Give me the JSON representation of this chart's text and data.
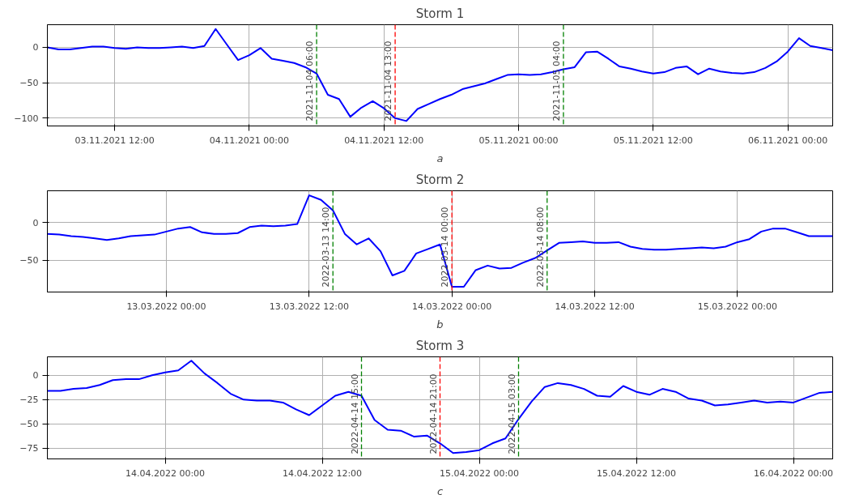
{
  "chart_data": [
    {
      "type": "line",
      "title": "Storm 1",
      "xlabel": "a",
      "grid": true,
      "line_style": "solid",
      "x": [
        "2021-11-03T06:00",
        "2021-11-03T07:00",
        "2021-11-03T08:00",
        "2021-11-03T09:00",
        "2021-11-03T10:00",
        "2021-11-03T11:00",
        "2021-11-03T12:00",
        "2021-11-03T13:00",
        "2021-11-03T14:00",
        "2021-11-03T15:00",
        "2021-11-03T16:00",
        "2021-11-03T17:00",
        "2021-11-03T18:00",
        "2021-11-03T19:00",
        "2021-11-03T20:00",
        "2021-11-03T21:00",
        "2021-11-03T22:00",
        "2021-11-03T23:00",
        "2021-11-04T00:00",
        "2021-11-04T01:00",
        "2021-11-04T02:00",
        "2021-11-04T03:00",
        "2021-11-04T04:00",
        "2021-11-04T05:00",
        "2021-11-04T06:00",
        "2021-11-04T07:00",
        "2021-11-04T08:00",
        "2021-11-04T09:00",
        "2021-11-04T10:00",
        "2021-11-04T11:00",
        "2021-11-04T12:00",
        "2021-11-04T13:00",
        "2021-11-04T14:00",
        "2021-11-04T15:00",
        "2021-11-04T16:00",
        "2021-11-04T17:00",
        "2021-11-04T18:00",
        "2021-11-04T19:00",
        "2021-11-04T20:00",
        "2021-11-04T21:00",
        "2021-11-04T22:00",
        "2021-11-04T23:00",
        "2021-11-05T00:00",
        "2021-11-05T01:00",
        "2021-11-05T02:00",
        "2021-11-05T03:00",
        "2021-11-05T04:00",
        "2021-11-05T05:00",
        "2021-11-05T06:00",
        "2021-11-05T07:00",
        "2021-11-05T08:00",
        "2021-11-05T09:00",
        "2021-11-05T10:00",
        "2021-11-05T11:00",
        "2021-11-05T12:00",
        "2021-11-05T13:00",
        "2021-11-05T14:00",
        "2021-11-05T15:00",
        "2021-11-05T16:00",
        "2021-11-05T17:00",
        "2021-11-05T18:00",
        "2021-11-05T19:00",
        "2021-11-05T20:00",
        "2021-11-05T21:00",
        "2021-11-05T22:00",
        "2021-11-05T23:00",
        "2021-11-06T00:00",
        "2021-11-06T01:00",
        "2021-11-06T02:00",
        "2021-11-06T03:00",
        "2021-11-06T04:00"
      ],
      "series": [
        {
          "color": "#0000ff",
          "values": [
            0,
            -3,
            -3,
            -1,
            1,
            1,
            -1,
            -2,
            0,
            -1,
            -1,
            0,
            1,
            -1,
            2,
            26,
            4,
            -18,
            -11,
            -1,
            -16,
            -19,
            -22,
            -28,
            -37,
            -67,
            -73,
            -98,
            -85,
            -76,
            -86,
            -100,
            -104,
            -87,
            -80,
            -73,
            -67,
            -59,
            -55,
            -51,
            -45,
            -39,
            -38,
            -39,
            -38,
            -35,
            -31,
            -28,
            -7,
            -6,
            -16,
            -27,
            -30,
            -34,
            -37,
            -35,
            -29,
            -27,
            -38,
            -30,
            -34,
            -36,
            -37,
            -35,
            -29,
            -20,
            -6,
            13,
            2,
            -1,
            -4
          ]
        }
      ],
      "xlim": [
        "2021-11-03T06:00",
        "2021-11-06T04:00"
      ],
      "xticks": [
        {
          "value": "2021-11-03T12:00",
          "label": "03.11.2021 12:00"
        },
        {
          "value": "2021-11-04T00:00",
          "label": "04.11.2021 00:00"
        },
        {
          "value": "2021-11-04T12:00",
          "label": "04.11.2021 12:00"
        },
        {
          "value": "2021-11-05T00:00",
          "label": "05.11.2021 00:00"
        },
        {
          "value": "2021-11-05T12:00",
          "label": "05.11.2021 12:00"
        },
        {
          "value": "2021-11-06T00:00",
          "label": "06.11.2021 00:00"
        }
      ],
      "ylim": [
        -111,
        32
      ],
      "yticks": [
        -100,
        -50,
        0
      ],
      "ref_lines": [
        {
          "axis": "x",
          "value": "2021-11-04T06:00",
          "label": "2021-11-04 06:00",
          "color": "#008000",
          "line_style": "dashed"
        },
        {
          "axis": "x",
          "value": "2021-11-04T13:00",
          "label": "2021-11-04 13:00",
          "color": "#ff0000",
          "line_style": "dashed"
        },
        {
          "axis": "x",
          "value": "2021-11-05T04:00",
          "label": "2021-11-05 04:00",
          "color": "#008000",
          "line_style": "dashed"
        }
      ]
    },
    {
      "type": "line",
      "title": "Storm 2",
      "xlabel": "b",
      "grid": true,
      "line_style": "solid",
      "x": [
        "2022-03-12T14:00",
        "2022-03-12T15:00",
        "2022-03-12T16:00",
        "2022-03-12T17:00",
        "2022-03-12T18:00",
        "2022-03-12T19:00",
        "2022-03-12T20:00",
        "2022-03-12T21:00",
        "2022-03-12T22:00",
        "2022-03-12T23:00",
        "2022-03-13T00:00",
        "2022-03-13T01:00",
        "2022-03-13T02:00",
        "2022-03-13T03:00",
        "2022-03-13T04:00",
        "2022-03-13T05:00",
        "2022-03-13T06:00",
        "2022-03-13T07:00",
        "2022-03-13T08:00",
        "2022-03-13T09:00",
        "2022-03-13T10:00",
        "2022-03-13T11:00",
        "2022-03-13T12:00",
        "2022-03-13T13:00",
        "2022-03-13T14:00",
        "2022-03-13T15:00",
        "2022-03-13T16:00",
        "2022-03-13T17:00",
        "2022-03-13T18:00",
        "2022-03-13T19:00",
        "2022-03-13T20:00",
        "2022-03-13T21:00",
        "2022-03-13T22:00",
        "2022-03-13T23:00",
        "2022-03-14T00:00",
        "2022-03-14T01:00",
        "2022-03-14T02:00",
        "2022-03-14T03:00",
        "2022-03-14T04:00",
        "2022-03-14T05:00",
        "2022-03-14T06:00",
        "2022-03-14T07:00",
        "2022-03-14T08:00",
        "2022-03-14T09:00",
        "2022-03-14T10:00",
        "2022-03-14T11:00",
        "2022-03-14T12:00",
        "2022-03-14T13:00",
        "2022-03-14T14:00",
        "2022-03-14T15:00",
        "2022-03-14T16:00",
        "2022-03-14T17:00",
        "2022-03-14T18:00",
        "2022-03-14T19:00",
        "2022-03-14T20:00",
        "2022-03-14T21:00",
        "2022-03-14T22:00",
        "2022-03-14T23:00",
        "2022-03-15T00:00",
        "2022-03-15T01:00",
        "2022-03-15T02:00",
        "2022-03-15T03:00",
        "2022-03-15T04:00",
        "2022-03-15T05:00",
        "2022-03-15T06:00",
        "2022-03-15T07:00",
        "2022-03-15T08:00"
      ],
      "series": [
        {
          "color": "#0000ff",
          "values": [
            -15,
            -16,
            -18,
            -19,
            -21,
            -23,
            -21,
            -18,
            -17,
            -16,
            -12,
            -8,
            -6,
            -13,
            -15,
            -15,
            -14,
            -6,
            -4,
            -5,
            -4,
            -2,
            36,
            30,
            16,
            -15,
            -29,
            -21,
            -38,
            -70,
            -64,
            -41,
            -35,
            -29,
            -85,
            -85,
            -63,
            -57,
            -61,
            -60,
            -53,
            -47,
            -37,
            -27,
            -26,
            -25,
            -27,
            -27,
            -26,
            -32,
            -35,
            -36,
            -36,
            -35,
            -34,
            -33,
            -34,
            -32,
            -26,
            -22,
            -12,
            -8,
            -8,
            -13,
            -18,
            -18,
            -18
          ]
        }
      ],
      "xlim": [
        "2022-03-12T14:00",
        "2022-03-15T08:00"
      ],
      "xticks": [
        {
          "value": "2022-03-13T00:00",
          "label": "13.03.2022 00:00"
        },
        {
          "value": "2022-03-13T12:00",
          "label": "13.03.2022 12:00"
        },
        {
          "value": "2022-03-14T00:00",
          "label": "14.03.2022 00:00"
        },
        {
          "value": "2022-03-14T12:00",
          "label": "14.03.2022 12:00"
        },
        {
          "value": "2022-03-15T00:00",
          "label": "15.03.2022 00:00"
        }
      ],
      "ylim": [
        -92,
        42
      ],
      "yticks": [
        -50,
        0
      ],
      "ref_lines": [
        {
          "axis": "x",
          "value": "2022-03-13T14:00",
          "label": "2022-03-13 14:00",
          "color": "#008000",
          "line_style": "dashed"
        },
        {
          "axis": "x",
          "value": "2022-03-14T00:00",
          "label": "2022-03-14 00:00",
          "color": "#ff0000",
          "line_style": "dashed"
        },
        {
          "axis": "x",
          "value": "2022-03-14T08:00",
          "label": "2022-03-14 08:00",
          "color": "#008000",
          "line_style": "dashed"
        }
      ]
    },
    {
      "type": "line",
      "title": "Storm 3",
      "xlabel": "c",
      "grid": true,
      "line_style": "solid",
      "x": [
        "2022-04-13T15:00",
        "2022-04-13T16:00",
        "2022-04-13T17:00",
        "2022-04-13T18:00",
        "2022-04-13T19:00",
        "2022-04-13T20:00",
        "2022-04-13T21:00",
        "2022-04-13T22:00",
        "2022-04-13T23:00",
        "2022-04-14T00:00",
        "2022-04-14T01:00",
        "2022-04-14T02:00",
        "2022-04-14T03:00",
        "2022-04-14T04:00",
        "2022-04-14T05:00",
        "2022-04-14T06:00",
        "2022-04-14T07:00",
        "2022-04-14T08:00",
        "2022-04-14T09:00",
        "2022-04-14T10:00",
        "2022-04-14T11:00",
        "2022-04-14T12:00",
        "2022-04-14T13:00",
        "2022-04-14T14:00",
        "2022-04-14T15:00",
        "2022-04-14T16:00",
        "2022-04-14T17:00",
        "2022-04-14T18:00",
        "2022-04-14T19:00",
        "2022-04-14T20:00",
        "2022-04-14T21:00",
        "2022-04-14T22:00",
        "2022-04-14T23:00",
        "2022-04-15T00:00",
        "2022-04-15T01:00",
        "2022-04-15T02:00",
        "2022-04-15T03:00",
        "2022-04-15T04:00",
        "2022-04-15T05:00",
        "2022-04-15T06:00",
        "2022-04-15T07:00",
        "2022-04-15T08:00",
        "2022-04-15T09:00",
        "2022-04-15T10:00",
        "2022-04-15T11:00",
        "2022-04-15T12:00",
        "2022-04-15T13:00",
        "2022-04-15T14:00",
        "2022-04-15T15:00",
        "2022-04-15T16:00",
        "2022-04-15T17:00",
        "2022-04-15T18:00",
        "2022-04-15T19:00",
        "2022-04-15T20:00",
        "2022-04-15T21:00",
        "2022-04-15T22:00",
        "2022-04-15T23:00",
        "2022-04-16T00:00",
        "2022-04-16T01:00",
        "2022-04-16T02:00",
        "2022-04-16T03:00"
      ],
      "series": [
        {
          "color": "#0000ff",
          "values": [
            -16,
            -16,
            -14,
            -13,
            -10,
            -5,
            -4,
            -4,
            0,
            3,
            5,
            15,
            2,
            -8,
            -19,
            -25,
            -26,
            -26,
            -28,
            -35,
            -41,
            -31,
            -21,
            -17,
            -21,
            -46,
            -56,
            -57,
            -63,
            -62,
            -70,
            -80,
            -79,
            -77,
            -70,
            -65,
            -45,
            -27,
            -12,
            -8,
            -10,
            -14,
            -21,
            -22,
            -11,
            -17,
            -20,
            -14,
            -17,
            -24,
            -26,
            -31,
            -30,
            -28,
            -26,
            -28,
            -27,
            -28,
            -23,
            -18,
            -17
          ]
        }
      ],
      "xlim": [
        "2022-04-13T15:00",
        "2022-04-16T03:00"
      ],
      "xticks": [
        {
          "value": "2022-04-14T00:00",
          "label": "14.04.2022 00:00"
        },
        {
          "value": "2022-04-14T12:00",
          "label": "14.04.2022 12:00"
        },
        {
          "value": "2022-04-15T00:00",
          "label": "15.04.2022 00:00"
        },
        {
          "value": "2022-04-15T12:00",
          "label": "15.04.2022 12:00"
        },
        {
          "value": "2022-04-16T00:00",
          "label": "16.04.2022 00:00"
        }
      ],
      "ylim": [
        -86,
        19
      ],
      "yticks": [
        -75,
        -50,
        -25,
        0
      ],
      "ref_lines": [
        {
          "axis": "x",
          "value": "2022-04-14T15:00",
          "label": "2022-04-14 15:00",
          "color": "#008000",
          "line_style": "dashed"
        },
        {
          "axis": "x",
          "value": "2022-04-14T21:00",
          "label": "2022-04-14 21:00",
          "color": "#ff0000",
          "line_style": "dashed"
        },
        {
          "axis": "x",
          "value": "2022-04-15T03:00",
          "label": "2022-04-15 03:00",
          "color": "#008000",
          "line_style": "dashed"
        }
      ]
    }
  ]
}
